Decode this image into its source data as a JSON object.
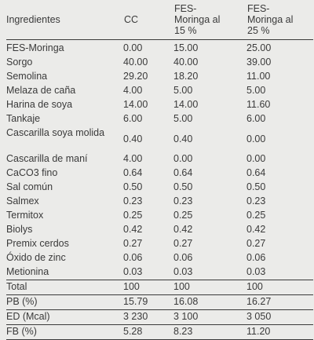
{
  "header": {
    "col1": "Ingredientes",
    "col2": "CC",
    "col3": "FES-\nMoringa al\n15 %",
    "col4": "FES-\nMoringa al\n25 %"
  },
  "rows": [
    {
      "name": "FES-Moringa",
      "cc": "0.00",
      "m15": "15.00",
      "m25": "25.00"
    },
    {
      "name": "Sorgo",
      "cc": "40.00",
      "m15": "40.00",
      "m25": "39.00"
    },
    {
      "name": "Semolina",
      "cc": "29.20",
      "m15": "18.20",
      "m25": "11.00"
    },
    {
      "name": "Melaza de caña",
      "cc": "4.00",
      "m15": "5.00",
      "m25": "5.00"
    },
    {
      "name": "Harina de soya",
      "cc": "14.00",
      "m15": "14.00",
      "m25": "11.60"
    },
    {
      "name": "Tankaje",
      "cc": "6.00",
      "m15": "5.00",
      "m25": "6.00"
    },
    {
      "name": "Cascarilla soya molida",
      "cc": "0.40",
      "m15": "0.40",
      "m25": "0.00"
    },
    {
      "name": "Cascarilla de maní",
      "cc": "4.00",
      "m15": "0.00",
      "m25": "0.00"
    },
    {
      "name": "CaCO3 fino",
      "cc": "0.64",
      "m15": "0.64",
      "m25": "0.64"
    },
    {
      "name": "Sal común",
      "cc": "0.50",
      "m15": "0.50",
      "m25": "0.50"
    },
    {
      "name": "Salmex",
      "cc": "0.23",
      "m15": "0.23",
      "m25": "0.23"
    },
    {
      "name": "Termitox",
      "cc": "0.25",
      "m15": "0.25",
      "m25": "0.25"
    },
    {
      "name": "Biolys",
      "cc": "0.42",
      "m15": "0.42",
      "m25": "0.42"
    },
    {
      "name": "Premix cerdos",
      "cc": "0.27",
      "m15": "0.27",
      "m25": "0.27"
    },
    {
      "name": "Óxido de zinc",
      "cc": "0.06",
      "m15": "0.06",
      "m25": "0.06"
    },
    {
      "name": "Metionina",
      "cc": "0.03",
      "m15": "0.03",
      "m25": "0.03"
    }
  ],
  "totals": [
    {
      "name": "Total",
      "cc": "100",
      "m15": "100",
      "m25": "100"
    },
    {
      "name": "PB (%)",
      "cc": "15.79",
      "m15": "16.08",
      "m25": "16.27"
    },
    {
      "name": "ED (Mcal)",
      "cc": "3 230",
      "m15": "3 100",
      "m25": "3 050"
    },
    {
      "name": "FB (%)",
      "cc": "5.28",
      "m15": "8.23",
      "m25": "11.20"
    }
  ]
}
